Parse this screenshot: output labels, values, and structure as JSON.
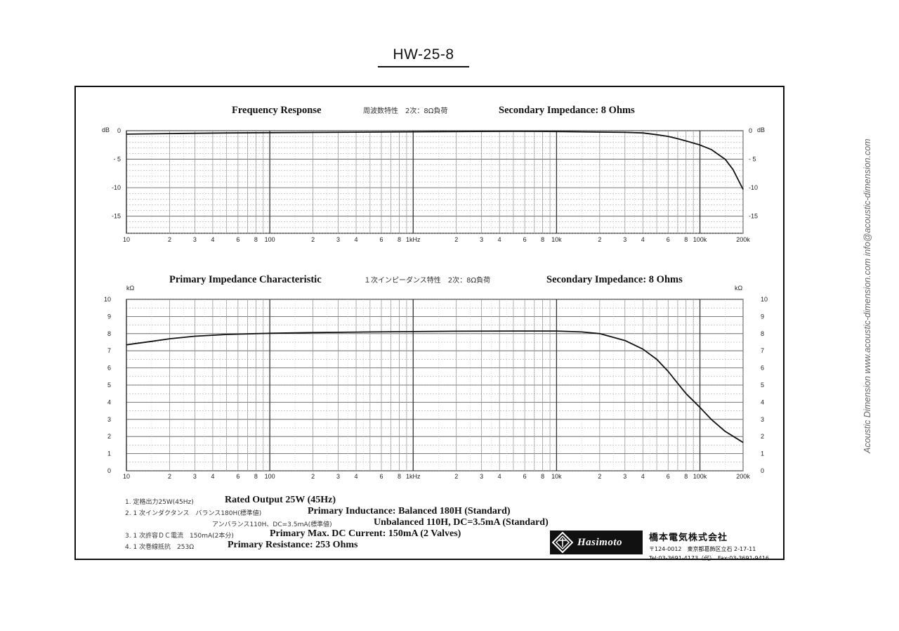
{
  "document": {
    "model": "HW-25-8",
    "watermark": "Acoustic Dimension     www.acoustic-dimension.com     info@acoustic-dimension.com"
  },
  "chart_data": [
    {
      "type": "line",
      "title": "Frequency Response",
      "title_jp": "周波数特性　2次：8Ω負荷",
      "subtitle": "Secondary Impedance: 8 Ohms",
      "xscale": "log",
      "xlim": [
        10,
        200000
      ],
      "ylim": [
        -18,
        0
      ],
      "y_unit_left": "dB",
      "y_unit_right": "dB",
      "y_ticks": [
        0,
        -5,
        -10,
        -15
      ],
      "y_tick_labels": [
        "0",
        "- 5",
        "-10",
        "-15"
      ],
      "x_tick_labels": [
        "10",
        "2",
        "3",
        "4",
        "6",
        "8",
        "100",
        "2",
        "3",
        "4",
        "6",
        "8",
        "1kHz",
        "2",
        "3",
        "4",
        "6",
        "8",
        "10k",
        "2",
        "3",
        "4",
        "6",
        "8",
        "100k",
        "200k"
      ],
      "grid": true,
      "series": [
        {
          "x": [
            10,
            20,
            50,
            100,
            500,
            1000,
            5000,
            10000,
            20000,
            30000,
            40000,
            50000,
            60000,
            70000,
            80000,
            100000,
            120000,
            150000,
            170000,
            200000
          ],
          "y": [
            -0.6,
            -0.5,
            -0.4,
            -0.35,
            -0.25,
            -0.2,
            -0.1,
            -0.15,
            -0.25,
            -0.3,
            -0.4,
            -0.7,
            -1.0,
            -1.4,
            -1.8,
            -2.5,
            -3.3,
            -5.0,
            -6.8,
            -10.3
          ]
        }
      ]
    },
    {
      "type": "line",
      "title": "Primary Impedance Characteristic",
      "title_jp": "１次インピーダンス特性　2次：8Ω負荷",
      "subtitle": "Secondary Impedance: 8 Ohms",
      "xscale": "log",
      "xlim": [
        10,
        200000
      ],
      "ylim": [
        0,
        10
      ],
      "y_unit_left": "kΩ",
      "y_unit_right": "kΩ",
      "y_ticks": [
        0,
        1,
        2,
        3,
        4,
        5,
        6,
        7,
        8,
        9,
        10
      ],
      "y_tick_labels": [
        "0",
        "1",
        "2",
        "3",
        "4",
        "5",
        "6",
        "7",
        "8",
        "9",
        "10"
      ],
      "x_tick_labels": [
        "10",
        "2",
        "3",
        "4",
        "6",
        "8",
        "100",
        "2",
        "3",
        "4",
        "6",
        "8",
        "1kHz",
        "2",
        "3",
        "4",
        "6",
        "8",
        "10k",
        "2",
        "3",
        "4",
        "6",
        "8",
        "100k",
        "200k"
      ],
      "grid": true,
      "series": [
        {
          "x": [
            10,
            15,
            20,
            30,
            50,
            80,
            100,
            200,
            500,
            1000,
            2000,
            5000,
            10000,
            15000,
            20000,
            30000,
            40000,
            50000,
            60000,
            70000,
            80000,
            100000,
            120000,
            150000,
            200000
          ],
          "y": [
            7.35,
            7.55,
            7.7,
            7.85,
            7.95,
            8.0,
            8.02,
            8.06,
            8.1,
            8.12,
            8.14,
            8.15,
            8.15,
            8.1,
            8.0,
            7.6,
            7.1,
            6.5,
            5.8,
            5.1,
            4.5,
            3.7,
            3.0,
            2.3,
            1.65
          ]
        }
      ]
    }
  ],
  "notes": [
    {
      "jp": "1. 定格出力25W(45Hz)",
      "en": "Rated Output 25W (45Hz)"
    },
    {
      "jp": "2. 1 次インダクタンス　バランス180H(標準値)",
      "en": "Primary Inductance: Balanced 180H (Standard)"
    },
    {
      "jp": "アンバランス110H、DC=3.5ｍA(標準値)",
      "en": "Unbalanced 110H, DC=3.5mA (Standard)"
    },
    {
      "jp": "3. 1 次許容ＤＣ電流　150mA(2本分)",
      "en": "Primary Max. DC Current: 150mA (2 Valves)"
    },
    {
      "jp": "4. 1 次巻線抵抗　253Ω",
      "en": "Primary Resistance: 253 Ohms"
    }
  ],
  "company": {
    "logo_text": "Hasimoto",
    "name": "橋本電気株式会社",
    "address": "〒124-0012　東京都葛飾区立石 2-17-11",
    "phone": "Tel:03-3691-4173（代）　Fax:03-3691-9416"
  }
}
